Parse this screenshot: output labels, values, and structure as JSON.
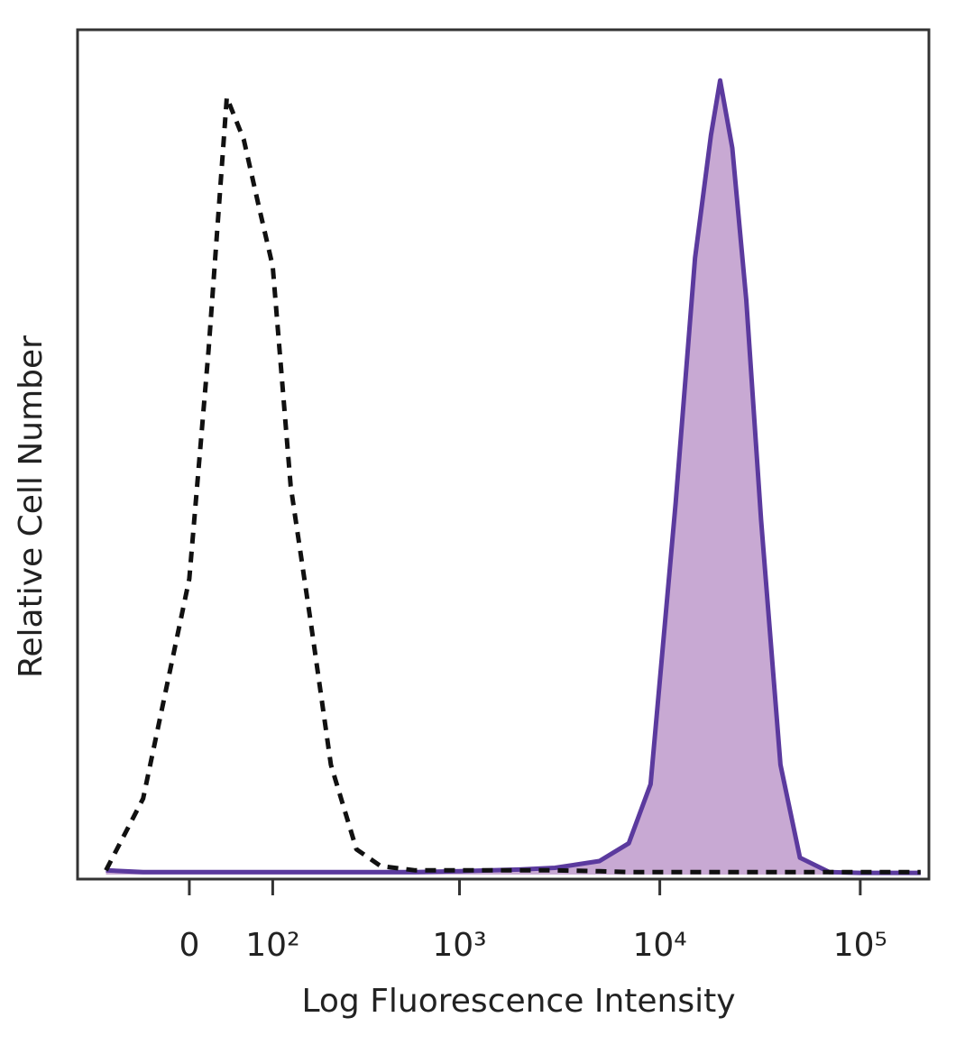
{
  "chart_data": {
    "type": "line",
    "xlabel": "Log Fluorescence Intensity",
    "ylabel": "Relative Cell Number",
    "xscale": "biexponential",
    "xlim": [
      -150,
      220000
    ],
    "ylim": [
      0,
      100
    ],
    "xticks": [
      0,
      {
        "value": 100,
        "label": "10²"
      },
      {
        "value": 1000,
        "label": "10³"
      },
      {
        "value": 10000,
        "label": "10⁴"
      },
      {
        "value": 100000,
        "label": "10⁵"
      }
    ],
    "x": [
      -100,
      -50,
      0,
      20,
      40,
      60,
      80,
      100,
      130,
      170,
      220,
      300,
      400,
      600,
      1000,
      2000,
      3000,
      5000,
      7000,
      9000,
      12000,
      15000,
      18000,
      20000,
      23000,
      27000,
      32000,
      40000,
      50000,
      70000,
      100000,
      200000
    ],
    "series": [
      {
        "color": "#111111",
        "line_style": "dashed",
        "values": [
          0.5,
          9,
          35,
          62,
          92,
          87,
          79,
          72,
          46,
          30,
          13,
          3,
          1,
          0.5,
          0.5,
          0.5,
          0.5,
          0.4,
          0.3,
          0.3,
          0.3,
          0.3,
          0.3,
          0.3,
          0.3,
          0.3,
          0.3,
          0.3,
          0.3,
          0.3,
          0.3,
          0.3
        ]
      },
      {
        "color": "#5b3a9e",
        "line_style": "solid",
        "fill": "#c8a9d3",
        "values": [
          0.5,
          0.3,
          0.3,
          0.3,
          0.3,
          0.3,
          0.3,
          0.3,
          0.3,
          0.3,
          0.3,
          0.3,
          0.3,
          0.3,
          0.4,
          0.6,
          0.8,
          1.6,
          3.7,
          10.7,
          44,
          73,
          87.5,
          94,
          86,
          68,
          42,
          13,
          2,
          0.3,
          0.2,
          0.2
        ]
      }
    ]
  }
}
